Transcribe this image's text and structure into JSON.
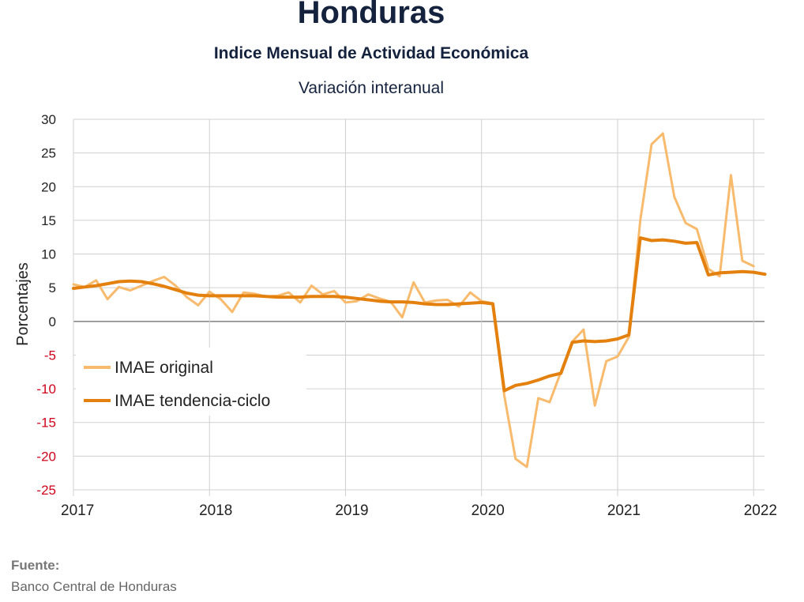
{
  "header": {
    "title": "Honduras",
    "subtitle": "Indice Mensual de  Actividad Económica",
    "caption": "Variación interanual"
  },
  "source": {
    "label": "Fuente:",
    "text": "Banco Central de Honduras"
  },
  "colors": {
    "original": "#f8ba6c",
    "trend": "#e3800e",
    "negative_tick": "#d0021b",
    "grid": "#d0d0d0",
    "zero_line": "#7f7f7f"
  },
  "chart_data": {
    "type": "line",
    "title": "Variación interanual",
    "xlabel": "",
    "ylabel": "Porcentajes",
    "xlim": [
      2017,
      2022.08
    ],
    "ylim": [
      -25,
      30
    ],
    "y_ticks": [
      30,
      25,
      20,
      15,
      10,
      5,
      0,
      -5,
      -10,
      -15,
      -20,
      -25
    ],
    "x_ticks": [
      2017,
      2018,
      2019,
      2020,
      2021,
      2022
    ],
    "grid": true,
    "legend_position": "middle-left",
    "series": [
      {
        "name": "IMAE original",
        "color": "#f8ba6c",
        "x": [
          2017.0,
          2017.083,
          2017.167,
          2017.25,
          2017.333,
          2017.417,
          2017.5,
          2017.583,
          2017.667,
          2017.75,
          2017.833,
          2017.917,
          2018.0,
          2018.083,
          2018.167,
          2018.25,
          2018.333,
          2018.417,
          2018.5,
          2018.583,
          2018.667,
          2018.75,
          2018.833,
          2018.917,
          2019.0,
          2019.083,
          2019.167,
          2019.25,
          2019.333,
          2019.417,
          2019.5,
          2019.583,
          2019.667,
          2019.75,
          2019.833,
          2019.917,
          2020.0,
          2020.083,
          2020.167,
          2020.25,
          2020.333,
          2020.417,
          2020.5,
          2020.583,
          2020.667,
          2020.75,
          2020.833,
          2020.917,
          2021.0,
          2021.083,
          2021.167,
          2021.25,
          2021.333,
          2021.417,
          2021.5,
          2021.583,
          2021.667,
          2021.75,
          2021.833,
          2021.917,
          2022.0,
          2022.083
        ],
        "values": [
          5.5,
          5.1,
          6.1,
          3.3,
          5.1,
          4.6,
          5.3,
          6.0,
          6.6,
          5.3,
          3.6,
          2.4,
          4.4,
          3.3,
          1.4,
          4.3,
          4.1,
          3.7,
          3.8,
          4.3,
          2.8,
          5.3,
          4.0,
          4.5,
          2.8,
          3.0,
          4.0,
          3.4,
          2.9,
          0.6,
          5.8,
          2.8,
          3.1,
          3.2,
          2.2,
          4.3,
          3.0,
          2.7,
          -11.0,
          -20.4,
          -21.6,
          -11.4,
          -12.0,
          -7.5,
          -3.0,
          -1.2,
          -12.5,
          -5.9,
          -5.2,
          -2.3,
          15.0,
          26.3,
          27.9,
          18.5,
          14.6,
          13.7,
          7.8,
          6.7,
          21.7,
          9.0,
          8.2,
          null
        ]
      },
      {
        "name": "IMAE tendencia-ciclo",
        "color": "#e3800e",
        "x": [
          2017.0,
          2017.083,
          2017.167,
          2017.25,
          2017.333,
          2017.417,
          2017.5,
          2017.583,
          2017.667,
          2017.75,
          2017.833,
          2017.917,
          2018.0,
          2018.083,
          2018.167,
          2018.25,
          2018.333,
          2018.417,
          2018.5,
          2018.583,
          2018.667,
          2018.75,
          2018.833,
          2018.917,
          2019.0,
          2019.083,
          2019.167,
          2019.25,
          2019.333,
          2019.417,
          2019.5,
          2019.583,
          2019.667,
          2019.75,
          2019.833,
          2019.917,
          2020.0,
          2020.083,
          2020.167,
          2020.25,
          2020.333,
          2020.417,
          2020.5,
          2020.583,
          2020.667,
          2020.75,
          2020.833,
          2020.917,
          2021.0,
          2021.083,
          2021.167,
          2021.25,
          2021.333,
          2021.417,
          2021.5,
          2021.583,
          2021.667,
          2021.75,
          2021.833,
          2021.917,
          2022.0,
          2022.083
        ],
        "values": [
          4.9,
          5.1,
          5.3,
          5.6,
          5.9,
          6.0,
          5.9,
          5.6,
          5.2,
          4.7,
          4.2,
          3.9,
          3.8,
          3.8,
          3.8,
          3.8,
          3.8,
          3.7,
          3.6,
          3.6,
          3.6,
          3.7,
          3.7,
          3.7,
          3.6,
          3.4,
          3.2,
          3.0,
          2.9,
          2.9,
          2.8,
          2.6,
          2.5,
          2.5,
          2.6,
          2.7,
          2.8,
          2.6,
          -10.3,
          -9.5,
          -9.2,
          -8.7,
          -8.1,
          -7.7,
          -3.1,
          -2.9,
          -3.0,
          -2.9,
          -2.6,
          -2.0,
          12.4,
          12.0,
          12.1,
          11.9,
          11.6,
          11.7,
          6.9,
          7.2,
          7.3,
          7.4,
          7.3,
          7.0
        ]
      }
    ]
  }
}
